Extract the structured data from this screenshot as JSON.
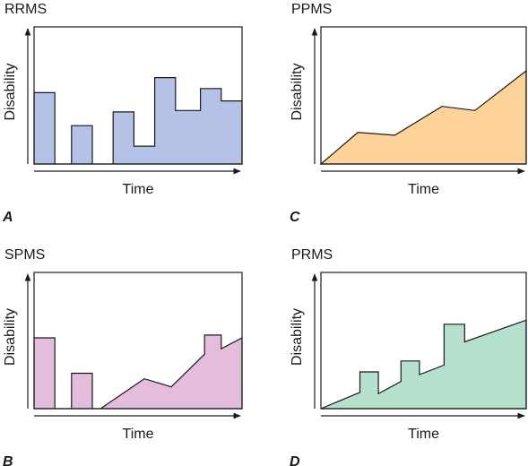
{
  "chart_data": [
    {
      "type": "area",
      "title": "RRMS",
      "letter": "A",
      "xlabel": "Time",
      "ylabel": "Disability",
      "color": "#b3c2e6",
      "xlim": [
        0,
        100
      ],
      "ylim": [
        0,
        100
      ],
      "points": [
        [
          0,
          0
        ],
        [
          0,
          52
        ],
        [
          10,
          52
        ],
        [
          10,
          0
        ],
        [
          18,
          0
        ],
        [
          18,
          28
        ],
        [
          28,
          28
        ],
        [
          28,
          0
        ],
        [
          38,
          0
        ],
        [
          38,
          38
        ],
        [
          48,
          38
        ],
        [
          48,
          13
        ],
        [
          58,
          13
        ],
        [
          58,
          63
        ],
        [
          68,
          63
        ],
        [
          68,
          39
        ],
        [
          80,
          39
        ],
        [
          80,
          55
        ],
        [
          90,
          55
        ],
        [
          90,
          46
        ],
        [
          100,
          46
        ],
        [
          100,
          0
        ]
      ]
    },
    {
      "type": "area",
      "title": "SPMS",
      "letter": "B",
      "xlabel": "Time",
      "ylabel": "Disability",
      "color": "#e3bddb",
      "xlim": [
        0,
        100
      ],
      "ylim": [
        0,
        100
      ],
      "points": [
        [
          0,
          0
        ],
        [
          0,
          52
        ],
        [
          10,
          52
        ],
        [
          10,
          0
        ],
        [
          18,
          0
        ],
        [
          18,
          26
        ],
        [
          28,
          26
        ],
        [
          28,
          0
        ],
        [
          32,
          0
        ],
        [
          53,
          22
        ],
        [
          66,
          16
        ],
        [
          82,
          40
        ],
        [
          82,
          54
        ],
        [
          90,
          54
        ],
        [
          90,
          44
        ],
        [
          100,
          52
        ],
        [
          100,
          0
        ]
      ]
    },
    {
      "type": "area",
      "title": "PPMS",
      "letter": "C",
      "xlabel": "Time",
      "ylabel": "Disability",
      "color": "#fdd39a",
      "xlim": [
        0,
        100
      ],
      "ylim": [
        0,
        100
      ],
      "points": [
        [
          0,
          0
        ],
        [
          18,
          23
        ],
        [
          36,
          21
        ],
        [
          59,
          42
        ],
        [
          75,
          39
        ],
        [
          100,
          68
        ],
        [
          100,
          0
        ]
      ]
    },
    {
      "type": "area",
      "title": "PRMS",
      "letter": "D",
      "xlabel": "Time",
      "ylabel": "Disability",
      "color": "#b4e0cc",
      "xlim": [
        0,
        100
      ],
      "ylim": [
        0,
        100
      ],
      "points": [
        [
          0,
          0
        ],
        [
          19,
          12
        ],
        [
          19,
          27
        ],
        [
          28,
          27
        ],
        [
          28,
          11
        ],
        [
          39,
          20
        ],
        [
          39,
          35
        ],
        [
          48,
          35
        ],
        [
          48,
          25
        ],
        [
          60,
          32
        ],
        [
          60,
          62
        ],
        [
          70,
          62
        ],
        [
          70,
          49
        ],
        [
          100,
          65
        ],
        [
          100,
          0
        ]
      ]
    }
  ]
}
